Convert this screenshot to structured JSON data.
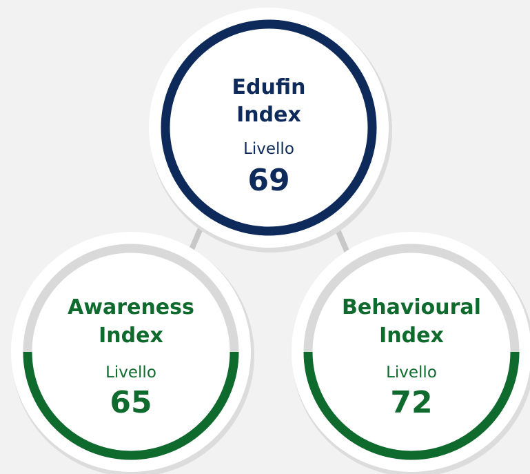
{
  "nodes": [
    {
      "title_lines": [
        "Edufin",
        "Index"
      ],
      "label": "Livello",
      "value": 69
    },
    {
      "title_lines": [
        "Awareness",
        "Index"
      ],
      "label": "Livello",
      "value": 65
    },
    {
      "title_lines": [
        "Behavioural",
        "Index"
      ],
      "label": "Livello",
      "value": 72
    }
  ]
}
